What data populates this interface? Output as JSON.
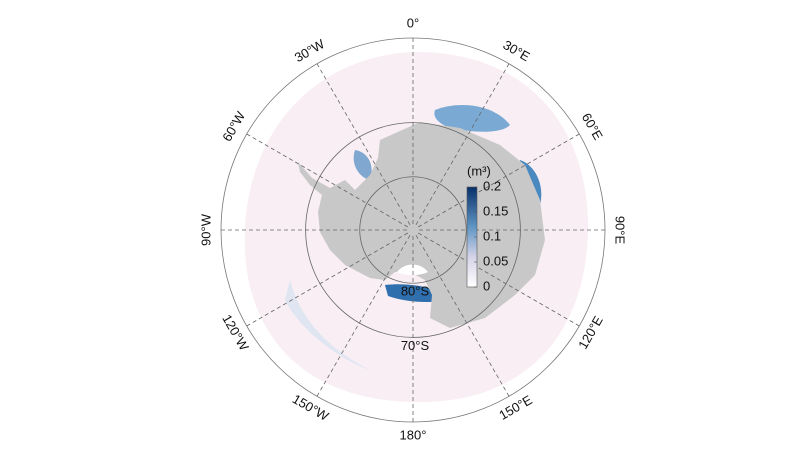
{
  "map": {
    "meridians": [
      {
        "lon": 0,
        "label": "0°"
      },
      {
        "lon": 30,
        "label": "30°E"
      },
      {
        "lon": 60,
        "label": "60°E"
      },
      {
        "lon": 90,
        "label": "90°E"
      },
      {
        "lon": 120,
        "label": "120°E"
      },
      {
        "lon": 150,
        "label": "150°E"
      },
      {
        "lon": 180,
        "label": "180°"
      },
      {
        "lon": -150,
        "label": "150°W"
      },
      {
        "lon": -120,
        "label": "120°W"
      },
      {
        "lon": -90,
        "label": "90°W"
      },
      {
        "lon": -60,
        "label": "60°W"
      },
      {
        "lon": -30,
        "label": "30°W"
      }
    ],
    "parallels": [
      {
        "lat": -70,
        "label": "70°S"
      },
      {
        "lat": -80,
        "label": "80°S"
      }
    ]
  },
  "colorbar": {
    "label": "(m³)",
    "lim": [
      0,
      0.2
    ],
    "ticks": [
      0,
      0.05,
      0.1,
      0.15,
      0.2
    ]
  }
}
